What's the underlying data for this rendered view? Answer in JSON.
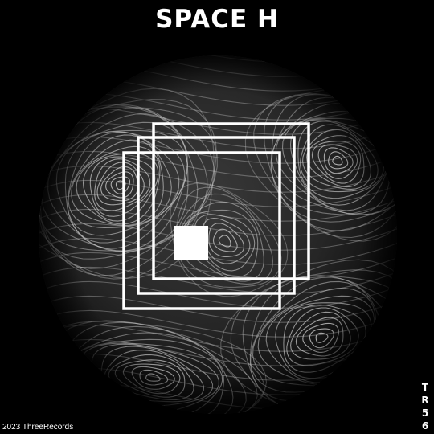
{
  "title": "SPACE H",
  "catalog_chars": [
    "T",
    "R",
    "5",
    "6"
  ],
  "copyright": "2023 ThreeRecords",
  "colors": {
    "background": "#000000",
    "foreground": "#ffffff",
    "sphere": "#2a2a2a"
  }
}
